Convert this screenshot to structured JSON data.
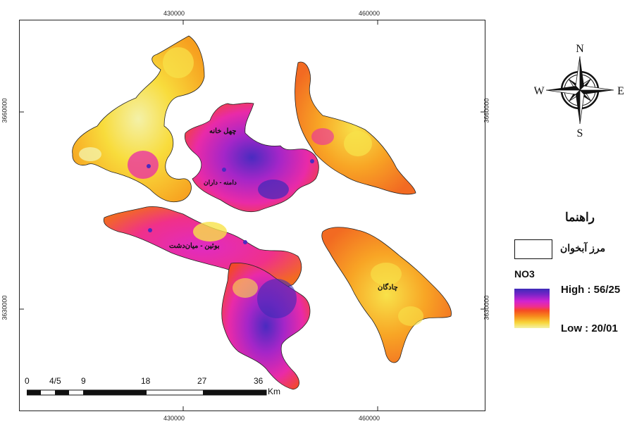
{
  "grid": {
    "x_ticks": [
      "430000",
      "460000"
    ],
    "y_ticks": [
      "3660000",
      "3630000"
    ]
  },
  "compass": {
    "north": "N",
    "south": "S",
    "east": "E",
    "west": "W"
  },
  "legend": {
    "title": "راهنما",
    "boundary_label": "مرز آبخوان",
    "variable": "NO3",
    "high_label": "High : 56/25",
    "low_label": "Low : 20/01",
    "colors": {
      "high": "#3d2ab8",
      "mid_high": "#d323d0",
      "mid": "#f64a24",
      "mid_low": "#f78c1c",
      "low": "#f4f2a5"
    }
  },
  "places": {
    "chehel_khaneh": "چهل خانه",
    "damaneh_daran": "دامنه - داران",
    "buin_miandasht": "بوئین - میان‌دشت",
    "chadegan": "چادگان"
  },
  "scale_bar": {
    "labels": [
      "0",
      "4/5",
      "9",
      "18",
      "27",
      "36"
    ],
    "unit": "Km"
  }
}
